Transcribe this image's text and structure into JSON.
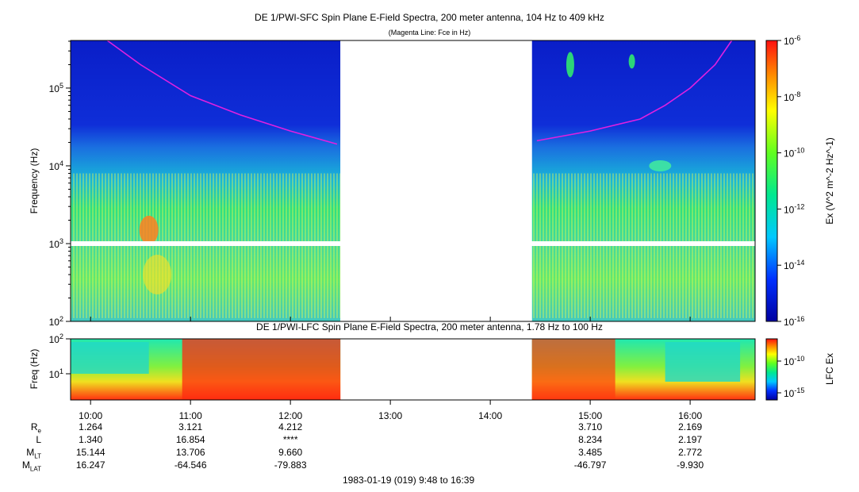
{
  "chart_data": [
    {
      "type": "heatmap",
      "title": "DE 1/PWI-SFC  Spin Plane E-Field Spectra, 200 meter antenna, 104 Hz to 409 kHz",
      "subtitle": "(Magenta Line: Fce in Hz)",
      "ylabel": "Frequency (Hz)",
      "yscale": "log",
      "ylim": [
        100,
        409000
      ],
      "yticks": [
        "10^2",
        "10^3",
        "10^4",
        "10^5"
      ],
      "x_range": [
        "09:48",
        "16:39"
      ],
      "data_gaps": [
        [
          "12:30",
          "14:25"
        ]
      ],
      "colorbar": {
        "label": "Ex (V^2 m^-2 Hz^-1)",
        "scale": "log",
        "range": [
          1e-16,
          1e-06
        ],
        "ticks": [
          "10^-6",
          "10^-8",
          "10^-10",
          "10^-12",
          "10^-14",
          "10^-16"
        ]
      },
      "series": [
        {
          "name": "Fce in Hz",
          "color": "#e020e0",
          "x": [
            "10:10",
            "10:30",
            "11:00",
            "11:30",
            "12:00",
            "12:28",
            "14:28",
            "15:00",
            "15:30",
            "15:45",
            "16:00",
            "16:15",
            "16:25"
          ],
          "y": [
            409000,
            200000,
            80000,
            45000,
            28000,
            19000,
            21000,
            28000,
            40000,
            60000,
            100000,
            200000,
            409000
          ]
        }
      ]
    },
    {
      "type": "heatmap",
      "title": "DE 1/PWI-LFC  Spin Plane E-Field Spectra, 200 meter antenna, 1.78 Hz to 100 Hz",
      "ylabel": "Freq (Hz)",
      "yscale": "log",
      "ylim": [
        1.78,
        100
      ],
      "yticks": [
        "10^1",
        "10^2"
      ],
      "colorbar": {
        "label": "LFC Ex",
        "scale": "log",
        "ticks": [
          "10^-10",
          "10^-15"
        ]
      }
    }
  ],
  "xaxis": {
    "ticks": [
      "10:00",
      "11:00",
      "12:00",
      "13:00",
      "14:00",
      "15:00",
      "16:00"
    ],
    "date_label": "1983-01-19 (019) 9:48 to 16:39"
  },
  "ephemeris": {
    "rows": [
      {
        "label": "Re",
        "values": [
          "1.264",
          "3.121",
          "4.212",
          "",
          "",
          "3.710",
          "2.169"
        ]
      },
      {
        "label": "L",
        "values": [
          "1.340",
          "16.854",
          "****",
          "",
          "",
          "8.234",
          "2.197"
        ]
      },
      {
        "label": "MLT",
        "values": [
          "15.144",
          "13.706",
          "9.660",
          "",
          "",
          "3.485",
          "2.772"
        ]
      },
      {
        "label": "MLAT",
        "values": [
          "16.247",
          "-64.546",
          "-79.883",
          "",
          "",
          "-46.797",
          "-9.930"
        ]
      }
    ]
  },
  "colors": {
    "fce_line": "#e020e0",
    "background": "#ffffff"
  }
}
